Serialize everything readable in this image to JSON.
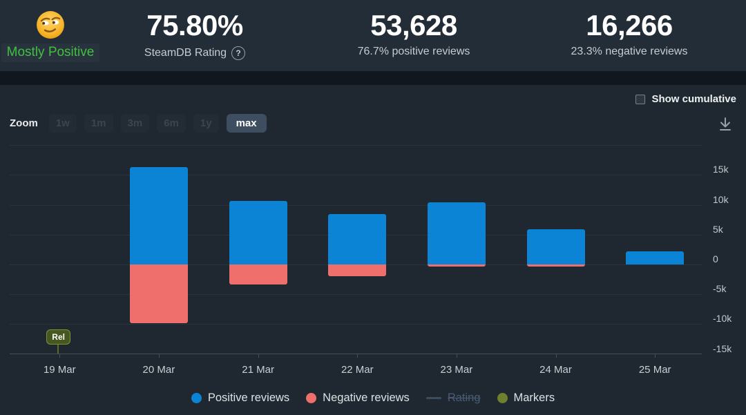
{
  "header": {
    "rating_summary": {
      "emoji": "smirking-face-emoji",
      "label": "Mostly Positive"
    },
    "stats": [
      {
        "value": "75.80%",
        "label": "SteamDB Rating",
        "help_glyph": "?"
      },
      {
        "value": "53,628",
        "label": "76.7% positive reviews"
      },
      {
        "value": "16,266",
        "label": "23.3% negative reviews"
      }
    ]
  },
  "toolbar": {
    "zoom_label": "Zoom",
    "ranges": [
      {
        "label": "1w",
        "state": "disabled"
      },
      {
        "label": "1m",
        "state": "disabled"
      },
      {
        "label": "3m",
        "state": "disabled"
      },
      {
        "label": "6m",
        "state": "disabled"
      },
      {
        "label": "1y",
        "state": "disabled"
      },
      {
        "label": "max",
        "state": "selected"
      }
    ],
    "show_cumulative": {
      "label": "Show cumulative",
      "checked": false
    },
    "download_icon": "download-chart-icon"
  },
  "chart_data": {
    "type": "bar",
    "stacked": true,
    "categories": [
      "19 Mar",
      "20 Mar",
      "21 Mar",
      "22 Mar",
      "23 Mar",
      "24 Mar",
      "25 Mar"
    ],
    "series": [
      {
        "name": "Positive reviews",
        "color": "#0b84d5",
        "values": [
          0,
          16300,
          10700,
          8500,
          10400,
          5900,
          2200
        ]
      },
      {
        "name": "Negative reviews",
        "color": "#ee6f6b",
        "values": [
          0,
          -9800,
          -3300,
          -2000,
          -350,
          -350,
          0
        ]
      }
    ],
    "yticks": [
      {
        "label": "15k",
        "value": 15000
      },
      {
        "label": "10k",
        "value": 10000
      },
      {
        "label": "5k",
        "value": 5000
      },
      {
        "label": "0",
        "value": 0
      },
      {
        "label": "-5k",
        "value": -5000
      },
      {
        "label": "-10k",
        "value": -10000
      },
      {
        "label": "-15k",
        "value": -15000
      }
    ],
    "ylim": [
      -15000,
      20000
    ],
    "grid": true,
    "legend_position": "bottom",
    "legend": [
      {
        "label": "Positive reviews",
        "color": "#0b84d5",
        "marker": "circle",
        "active": true
      },
      {
        "label": "Negative reviews",
        "color": "#ee6f6b",
        "marker": "circle",
        "active": true
      },
      {
        "label": "Rating",
        "color": "#3c4c61",
        "marker": "line",
        "active": false
      },
      {
        "label": "Markers",
        "color": "#6f7f2e",
        "marker": "circle",
        "active": true
      }
    ],
    "markers": [
      {
        "label": "Rel",
        "category": "19 Mar"
      }
    ]
  }
}
